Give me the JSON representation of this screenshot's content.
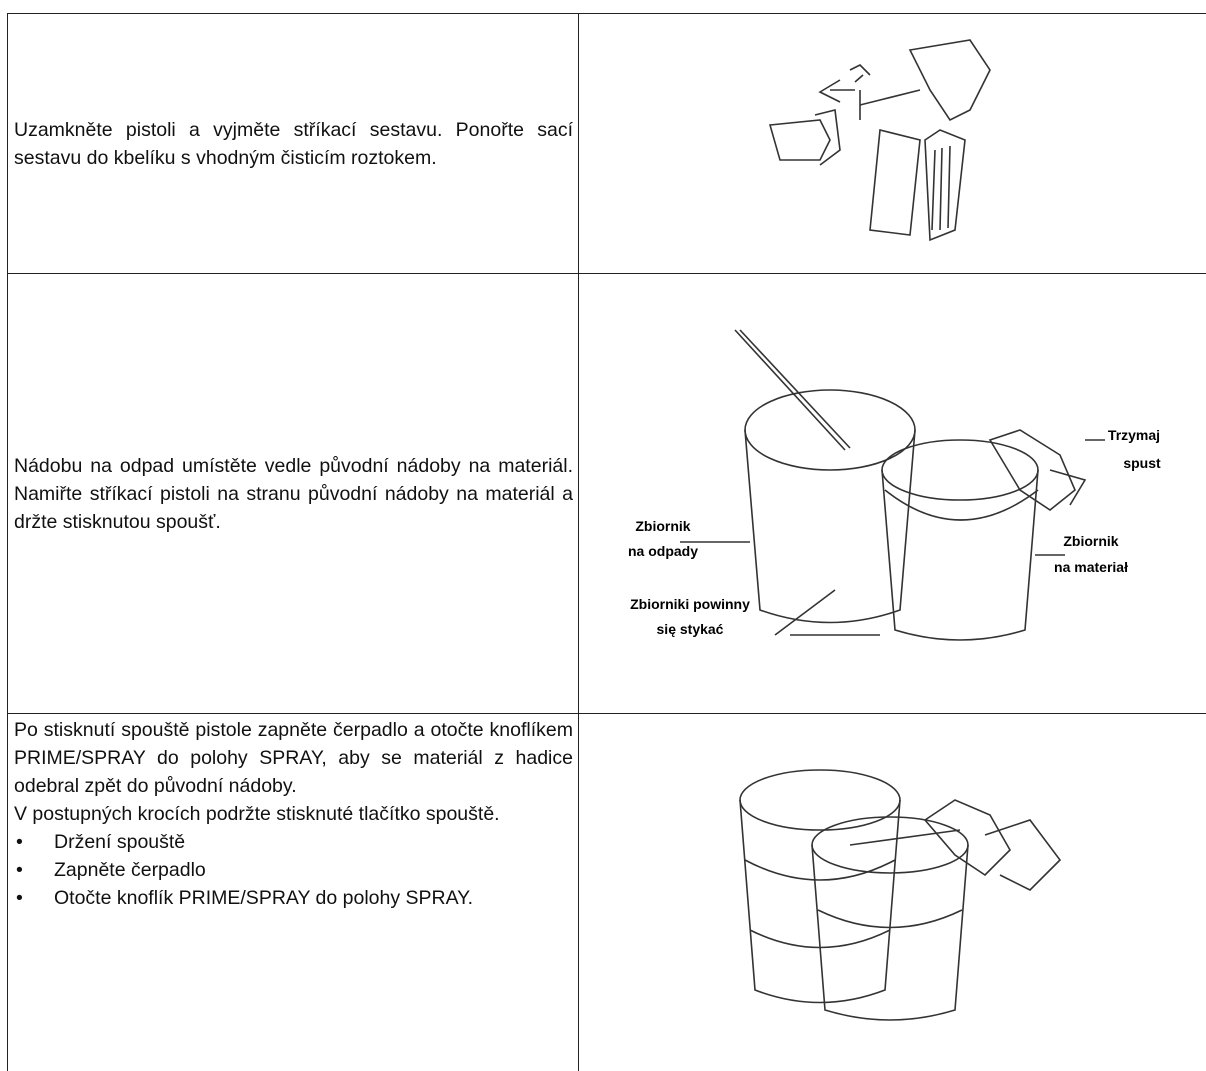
{
  "table": {
    "rows": [
      {
        "text": "Uzamkněte pistoli a vyjměte stříkací sestavu. Ponořte sací sestavu do kbelíku s vhodným čisticím roztokem."
      },
      {
        "text": "Nádobu na odpad umístěte vedle původní nádoby na materiál. Namiřte stříkací pistoli na stranu původní nádoby na materiál a držte stisknutou spoušť.",
        "image_labels": [
          [
            "Trzymaj",
            "spust"
          ],
          [
            "Zbiornik",
            "na odpady"
          ],
          [
            "Zbiornik",
            "na materiał"
          ],
          [
            "Zbiorniki powinny",
            "się stykać"
          ]
        ]
      },
      {
        "paragraphs": [
          "Po stisknutí spouště pistole zapněte čerpadlo a otočte knoflíkem PRIME/SPRAY do polohy SPRAY, aby se materiál z hadice odebral zpět do původní nádoby.",
          "V postupných krocích podržte stisknuté tlačítko spouště."
        ],
        "bullets": [
          "Držení spouště",
          "Zapněte čerpadlo",
          "Otočte knoflík PRIME/SPRAY do polohy SPRAY."
        ]
      }
    ]
  }
}
